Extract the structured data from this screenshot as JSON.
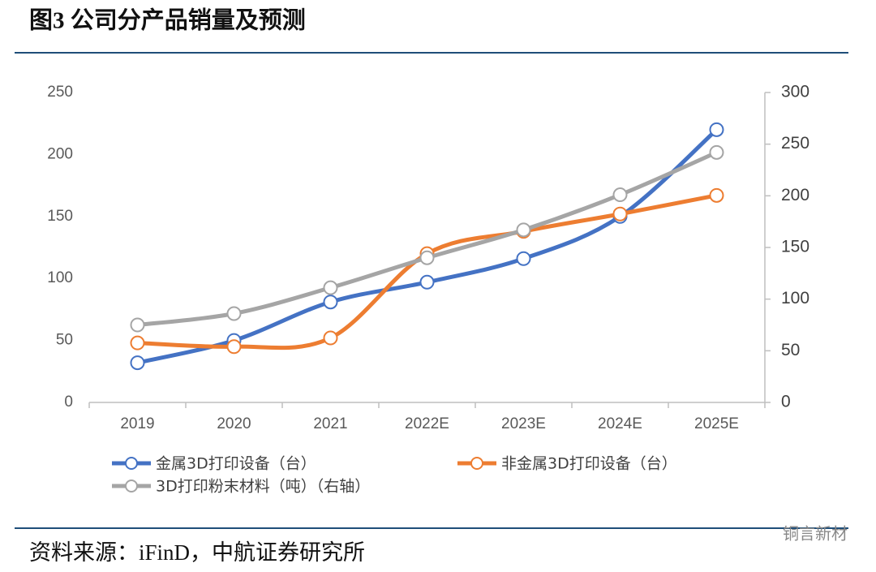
{
  "title": "图3 公司分产品销量及预测",
  "source": "资料来源：iFinD，中航证券研究所",
  "watermark": "铜言新材",
  "chart_data": {
    "type": "line",
    "categories": [
      "2019",
      "2020",
      "2021",
      "2022E",
      "2023E",
      "2024E",
      "2025E"
    ],
    "series": [
      {
        "name": "金属3D打印设备（台）",
        "color": "#4472c4",
        "values": [
          32,
          50,
          81,
          97,
          116,
          150,
          220
        ]
      },
      {
        "name": "非金属3D打印设备（台）",
        "color": "#ed7d31",
        "values": [
          48,
          45,
          52,
          120,
          138,
          152,
          167
        ]
      },
      {
        "name": "3D打印粉末材料（吨）（右轴）",
        "color": "#a5a5a5",
        "axis": "y2",
        "values": [
          75,
          86,
          111,
          140,
          167,
          201,
          242
        ]
      }
    ],
    "ylim": [
      0,
      250
    ],
    "yticks": [
      0,
      50,
      100,
      150,
      200,
      250
    ],
    "y2lim": [
      0,
      300
    ],
    "y2ticks": [
      0,
      50,
      100,
      150,
      200,
      250,
      300
    ],
    "smooth": true,
    "grid": false
  }
}
